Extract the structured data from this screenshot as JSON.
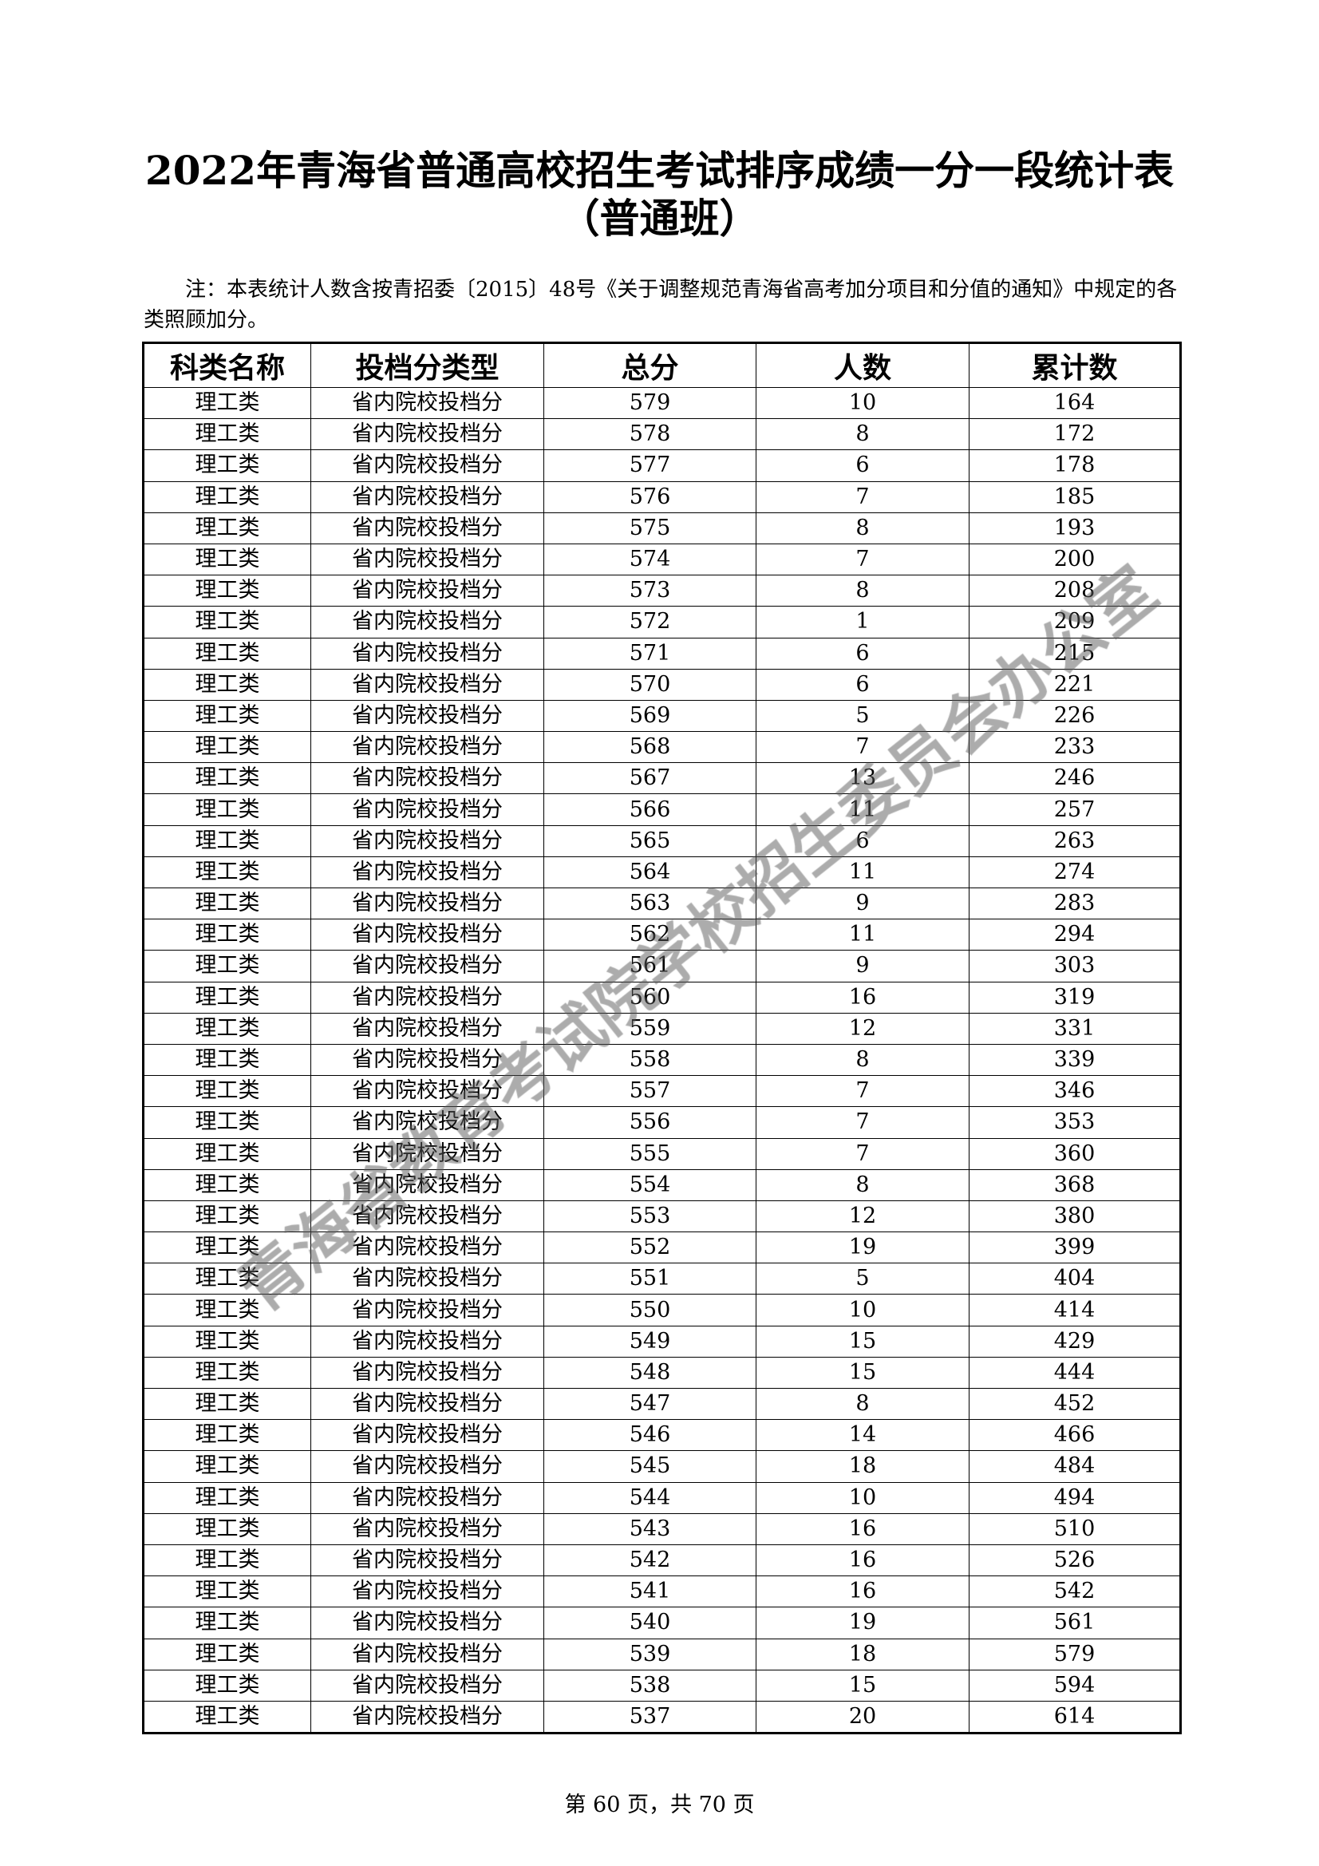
{
  "title_line1": "2022年青海省普通高校招生考试排序成绩一分一段统计表",
  "title_line2": "（普通班）",
  "note": "注：本表统计人数含按青招委〔2015〕48号《关于调整规范青海省高考加分项目和分值的通知》中规定的各类照顾加分。",
  "table": {
    "headers": [
      "科类名称",
      "投档分类型",
      "总分",
      "人数",
      "累计数"
    ],
    "category": "理工类",
    "type": "省内院校投档分",
    "rows": [
      [
        579,
        10,
        164
      ],
      [
        578,
        8,
        172
      ],
      [
        577,
        6,
        178
      ],
      [
        576,
        7,
        185
      ],
      [
        575,
        8,
        193
      ],
      [
        574,
        7,
        200
      ],
      [
        573,
        8,
        208
      ],
      [
        572,
        1,
        209
      ],
      [
        571,
        6,
        215
      ],
      [
        570,
        6,
        221
      ],
      [
        569,
        5,
        226
      ],
      [
        568,
        7,
        233
      ],
      [
        567,
        13,
        246
      ],
      [
        566,
        11,
        257
      ],
      [
        565,
        6,
        263
      ],
      [
        564,
        11,
        274
      ],
      [
        563,
        9,
        283
      ],
      [
        562,
        11,
        294
      ],
      [
        561,
        9,
        303
      ],
      [
        560,
        16,
        319
      ],
      [
        559,
        12,
        331
      ],
      [
        558,
        8,
        339
      ],
      [
        557,
        7,
        346
      ],
      [
        556,
        7,
        353
      ],
      [
        555,
        7,
        360
      ],
      [
        554,
        8,
        368
      ],
      [
        553,
        12,
        380
      ],
      [
        552,
        19,
        399
      ],
      [
        551,
        5,
        404
      ],
      [
        550,
        10,
        414
      ],
      [
        549,
        15,
        429
      ],
      [
        548,
        15,
        444
      ],
      [
        547,
        8,
        452
      ],
      [
        546,
        14,
        466
      ],
      [
        545,
        18,
        484
      ],
      [
        544,
        10,
        494
      ],
      [
        543,
        16,
        510
      ],
      [
        542,
        16,
        526
      ],
      [
        541,
        16,
        542
      ],
      [
        540,
        19,
        561
      ],
      [
        539,
        18,
        579
      ],
      [
        538,
        15,
        594
      ],
      [
        537,
        20,
        614
      ]
    ]
  },
  "footer": "第 60 页，共 70 页",
  "watermark": "青海省教育考试院学校招生委员会办公室"
}
